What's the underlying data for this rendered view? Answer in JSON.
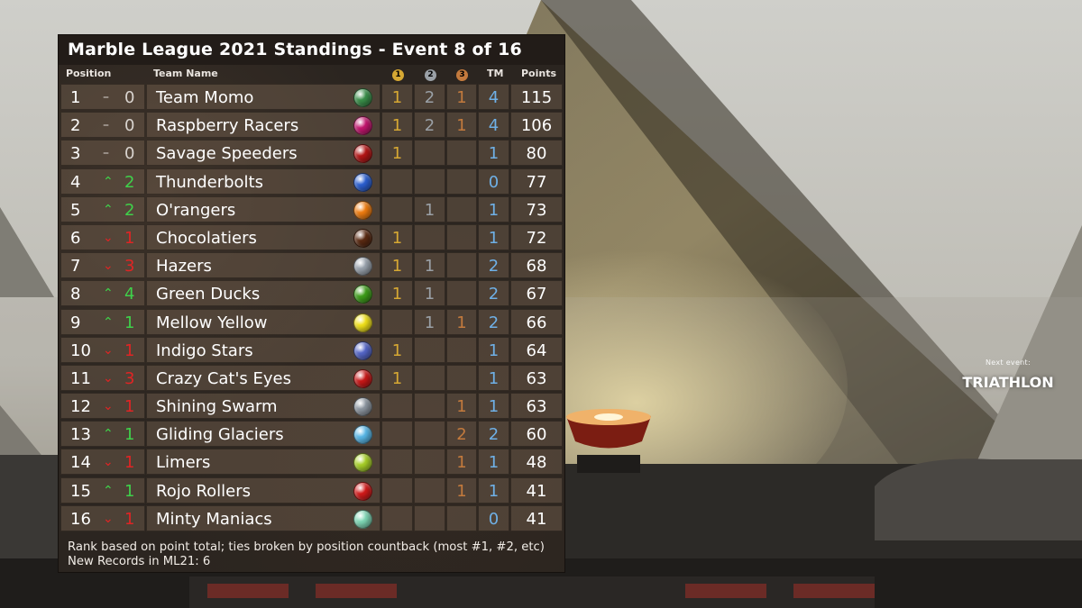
{
  "title": "Marble League 2021 Standings - Event 8 of 16",
  "columns": {
    "position": "Position",
    "team_name": "Team Name",
    "gold_medal": "1",
    "silver_medal": "2",
    "bronze_medal": "3",
    "tm": "TM",
    "points": "Points"
  },
  "colors": {
    "gold": "#d6a833",
    "silver": "#9aa0a6",
    "bronze": "#c37a3d",
    "tm": "#6fb0e6",
    "up": "#3fd14a",
    "down": "#e02424"
  },
  "rows": [
    {
      "rank": "1",
      "trend": "same",
      "arrow": "–",
      "change": "0",
      "team": "Team Momo",
      "marble_icon": "green-blue-swirl-marble",
      "marble_color": "#3a8f4a",
      "gold": "1",
      "silver": "2",
      "bronze": "1",
      "tm": "4",
      "points": "115"
    },
    {
      "rank": "2",
      "trend": "same",
      "arrow": "–",
      "change": "0",
      "team": "Raspberry Racers",
      "marble_icon": "magenta-marble",
      "marble_color": "#c4166f",
      "gold": "1",
      "silver": "2",
      "bronze": "1",
      "tm": "4",
      "points": "106"
    },
    {
      "rank": "3",
      "trend": "same",
      "arrow": "–",
      "change": "0",
      "team": "Savage Speeders",
      "marble_icon": "red-yellow-marble",
      "marble_color": "#b51515",
      "gold": "1",
      "silver": "",
      "bronze": "",
      "tm": "1",
      "points": "80"
    },
    {
      "rank": "4",
      "trend": "up",
      "arrow": "⌃",
      "change": "2",
      "team": "Thunderbolts",
      "marble_icon": "blue-lightning-marble",
      "marble_color": "#2b5fd1",
      "gold": "",
      "silver": "",
      "bronze": "",
      "tm": "0",
      "points": "77"
    },
    {
      "rank": "5",
      "trend": "up",
      "arrow": "⌃",
      "change": "2",
      "team": "O'rangers",
      "marble_icon": "orange-marble",
      "marble_color": "#f07d10",
      "gold": "",
      "silver": "1",
      "bronze": "",
      "tm": "1",
      "points": "73"
    },
    {
      "rank": "6",
      "trend": "down",
      "arrow": "⌄",
      "change": "1",
      "team": "Chocolatiers",
      "marble_icon": "brown-marble",
      "marble_color": "#5a2a12",
      "gold": "1",
      "silver": "",
      "bronze": "",
      "tm": "1",
      "points": "72"
    },
    {
      "rank": "7",
      "trend": "down",
      "arrow": "⌄",
      "change": "3",
      "team": "Hazers",
      "marble_icon": "grey-haze-marble",
      "marble_color": "#9aa3ad",
      "gold": "1",
      "silver": "1",
      "bronze": "",
      "tm": "2",
      "points": "68"
    },
    {
      "rank": "8",
      "trend": "up",
      "arrow": "⌃",
      "change": "4",
      "team": "Green Ducks",
      "marble_icon": "green-duck-marble",
      "marble_color": "#3e9e1a",
      "gold": "1",
      "silver": "1",
      "bronze": "",
      "tm": "2",
      "points": "67"
    },
    {
      "rank": "9",
      "trend": "up",
      "arrow": "⌃",
      "change": "1",
      "team": "Mellow Yellow",
      "marble_icon": "yellow-marble",
      "marble_color": "#f2e21a",
      "gold": "",
      "silver": "1",
      "bronze": "1",
      "tm": "2",
      "points": "66"
    },
    {
      "rank": "10",
      "trend": "down",
      "arrow": "⌄",
      "change": "1",
      "team": "Indigo Stars",
      "marble_icon": "indigo-star-marble",
      "marble_color": "#5566c8",
      "gold": "1",
      "silver": "",
      "bronze": "",
      "tm": "1",
      "points": "64"
    },
    {
      "rank": "11",
      "trend": "down",
      "arrow": "⌄",
      "change": "3",
      "team": "Crazy Cat's Eyes",
      "marble_icon": "red-black-cats-eye-marble",
      "marble_color": "#c91818",
      "gold": "1",
      "silver": "",
      "bronze": "",
      "tm": "1",
      "points": "63"
    },
    {
      "rank": "12",
      "trend": "down",
      "arrow": "⌄",
      "change": "1",
      "team": "Shining Swarm",
      "marble_icon": "silver-swirl-marble",
      "marble_color": "#8d96a0",
      "gold": "",
      "silver": "",
      "bronze": "1",
      "tm": "1",
      "points": "63"
    },
    {
      "rank": "13",
      "trend": "up",
      "arrow": "⌃",
      "change": "1",
      "team": "Gliding Glaciers",
      "marble_icon": "light-blue-marble",
      "marble_color": "#59b8e8",
      "gold": "",
      "silver": "",
      "bronze": "2",
      "tm": "2",
      "points": "60"
    },
    {
      "rank": "14",
      "trend": "down",
      "arrow": "⌄",
      "change": "1",
      "team": "Limers",
      "marble_icon": "lime-marble",
      "marble_color": "#a8d028",
      "gold": "",
      "silver": "",
      "bronze": "1",
      "tm": "1",
      "points": "48"
    },
    {
      "rank": "15",
      "trend": "up",
      "arrow": "⌃",
      "change": "1",
      "team": "Rojo Rollers",
      "marble_icon": "red-marble",
      "marble_color": "#d31a1a",
      "gold": "",
      "silver": "",
      "bronze": "1",
      "tm": "1",
      "points": "41"
    },
    {
      "rank": "16",
      "trend": "down",
      "arrow": "⌄",
      "change": "1",
      "team": "Minty Maniacs",
      "marble_icon": "mint-swirl-marble",
      "marble_color": "#7fd8b6",
      "gold": "",
      "silver": "",
      "bronze": "",
      "tm": "0",
      "points": "41"
    }
  ],
  "footer": {
    "line1": "Rank based on point total; ties broken by position countback (most #1, #2, etc)",
    "line2": "New Records in ML21: 6"
  },
  "next_event": {
    "label": "Next event:",
    "value": "TRIATHLON"
  }
}
